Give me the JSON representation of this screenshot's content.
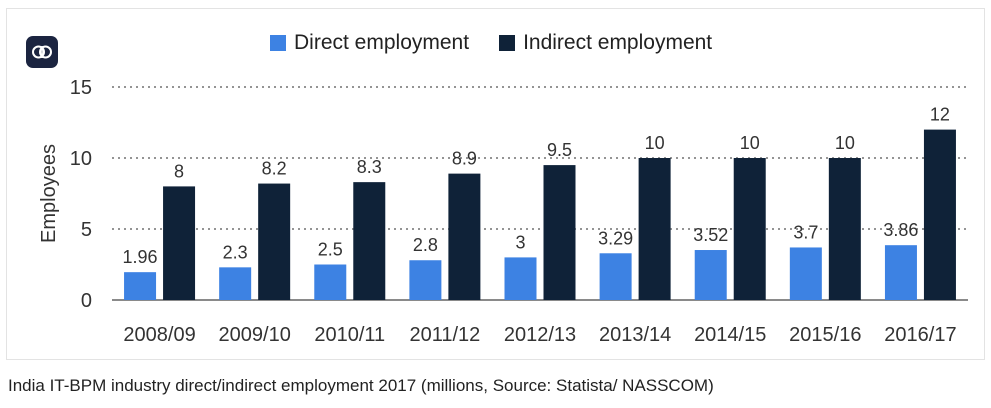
{
  "colors": {
    "direct": "#3d82e3",
    "indirect": "#0f2238",
    "grid": "#555555",
    "badge": "#1b2440"
  },
  "icons": {
    "badge": "brain-icon"
  },
  "caption": "India IT-BPM industry direct/indirect employment 2017 (millions, Source: Statista/ NASSCOM)",
  "chart_data": {
    "type": "bar",
    "title": "",
    "xlabel": "",
    "ylabel": "Employees",
    "ylim": [
      0,
      15
    ],
    "yticks": [
      "0",
      "5",
      "10",
      "15"
    ],
    "grid": true,
    "legend_position": "top",
    "categories": [
      "2008/09",
      "2009/10",
      "2010/11",
      "2011/12",
      "2012/13",
      "2013/14",
      "2014/15",
      "2015/16",
      "2016/17"
    ],
    "series": [
      {
        "name": "Direct employment",
        "values": [
          1.96,
          2.3,
          2.5,
          2.8,
          3,
          3.29,
          3.52,
          3.7,
          3.86
        ],
        "labels": [
          "1.96",
          "2.3",
          "2.5",
          "2.8",
          "3",
          "3.29",
          "3.52",
          "3.7",
          "3.86"
        ]
      },
      {
        "name": "Indirect employment",
        "values": [
          8,
          8.2,
          8.3,
          8.9,
          9.5,
          10,
          10,
          10,
          12
        ],
        "labels": [
          "8",
          "8.2",
          "8.3",
          "8.9",
          "9.5",
          "10",
          "10",
          "10",
          "12"
        ]
      }
    ]
  }
}
